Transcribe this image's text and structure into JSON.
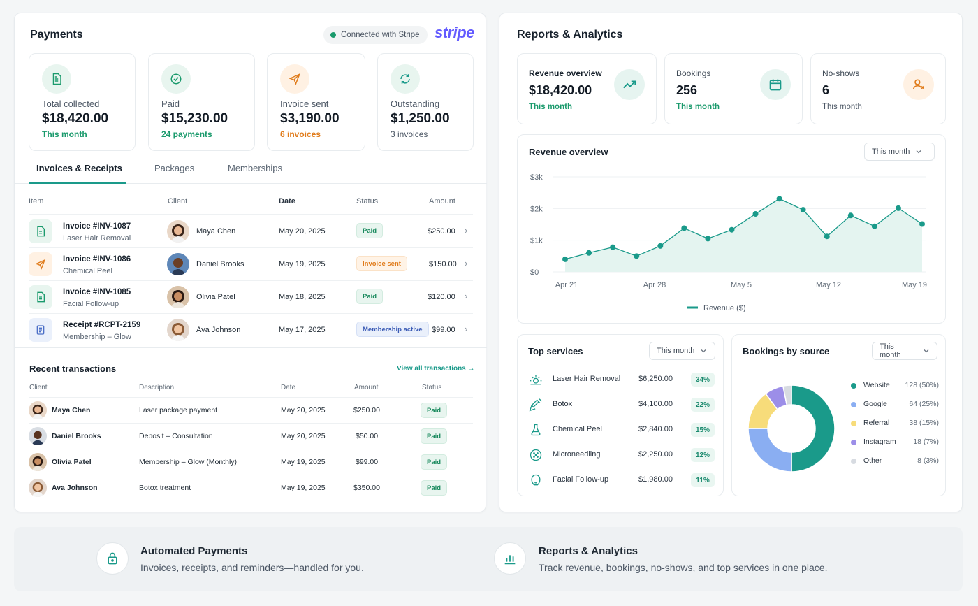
{
  "payments": {
    "title": "Payments",
    "stripe_status": "Connected with Stripe",
    "stripe_logo": "stripe",
    "stats": [
      {
        "icon": "receipt-icon",
        "label": "Total collected",
        "value": "$18,420.00",
        "sub": "This month",
        "sub_color": "#1a9a6c"
      },
      {
        "icon": "check-circle-icon",
        "label": "Paid",
        "value": "$15,230.00",
        "sub": "24 payments",
        "sub_color": "#1a9a6c"
      },
      {
        "icon": "send-icon",
        "label": "Invoice sent",
        "value": "$3,190.00",
        "sub": "6 invoices",
        "sub_color": "#e07b1a"
      },
      {
        "icon": "refresh-icon",
        "label": "Outstanding",
        "value": "$1,250.00",
        "sub": "3 invoices",
        "sub_color": "#4a5563"
      }
    ],
    "tabs": [
      "Invoices & Receipts",
      "Packages",
      "Memberships"
    ],
    "table_headers": [
      "Item",
      "Client",
      "Date",
      "Status",
      "Amount"
    ],
    "invoices": [
      {
        "title": "Invoice #INV-1087",
        "sub": "Laser Hair Removal",
        "client": "Maya Chen",
        "date": "May 20, 2025",
        "status": "Paid",
        "amount": "$250.00"
      },
      {
        "title": "Invoice #INV-1086",
        "sub": "Chemical Peel",
        "client": "Daniel Brooks",
        "date": "May 19, 2025",
        "status": "Invoice sent",
        "amount": "$150.00"
      },
      {
        "title": "Invoice #INV-1085",
        "sub": "Facial Follow-up",
        "client": "Olivia Patel",
        "date": "May 18, 2025",
        "status": "Paid",
        "amount": "$120.00"
      },
      {
        "title": "Receipt #RCPT-2159",
        "sub": "Membership – Glow",
        "client": "Ava Johnson",
        "date": "May 17, 2025",
        "status": "Membership active",
        "amount": "$99.00"
      }
    ],
    "recent": {
      "title": "Recent transactions",
      "link": "View all transactions →",
      "headers": [
        "Client",
        "Description",
        "Date",
        "Amount",
        "Status"
      ],
      "rows": [
        {
          "client": "Maya Chen",
          "desc": "Laser package payment",
          "date": "May 20, 2025",
          "amount": "$250.00",
          "status": "Paid"
        },
        {
          "client": "Daniel Brooks",
          "desc": "Deposit – Consultation",
          "date": "May 20, 2025",
          "amount": "$50.00",
          "status": "Paid"
        },
        {
          "client": "Olivia Patel",
          "desc": "Membership – Glow (Monthly)",
          "date": "May 19, 2025",
          "amount": "$99.00",
          "status": "Paid"
        },
        {
          "client": "Ava Johnson",
          "desc": "Botox treatment",
          "date": "May 19, 2025",
          "amount": "$350.00",
          "status": "Paid"
        }
      ]
    }
  },
  "reports": {
    "title": "Reports & Analytics",
    "stats": [
      {
        "label": "Revenue overview",
        "value": "$18,420.00",
        "sub": "This month",
        "icon": "trend-up-icon"
      },
      {
        "label": "Bookings",
        "value": "256",
        "sub": "This month",
        "icon": "calendar-icon"
      },
      {
        "label": "No-shows",
        "value": "6",
        "sub": "This month",
        "icon": "user-x-icon"
      }
    ],
    "revenue_title": "Revenue overview",
    "period": "This month",
    "top_services": {
      "title": "Top services",
      "period": "This month",
      "items": [
        {
          "name": "Laser Hair Removal",
          "amount": "$6,250.00",
          "pct": "34%",
          "icon": "sun-icon"
        },
        {
          "name": "Botox",
          "amount": "$4,100.00",
          "pct": "22%",
          "icon": "syringe-icon"
        },
        {
          "name": "Chemical Peel",
          "amount": "$2,840.00",
          "pct": "15%",
          "icon": "flask-icon"
        },
        {
          "name": "Microneedling",
          "amount": "$2,250.00",
          "pct": "12%",
          "icon": "microneedle-icon"
        },
        {
          "name": "Facial Follow-up",
          "amount": "$1,980.00",
          "pct": "11%",
          "icon": "face-icon"
        }
      ]
    },
    "bookings_source": {
      "title": "Bookings by source",
      "period": "This month"
    }
  },
  "footer": {
    "items": [
      {
        "title": "Automated Payments",
        "sub": "Invoices, receipts, and reminders—handled for you.",
        "icon": "lock-icon"
      },
      {
        "title": "Reports & Analytics",
        "sub": "Track revenue, bookings, no-shows, and top services in one place.",
        "icon": "bar-chart-icon"
      }
    ]
  },
  "chart_data": [
    {
      "type": "area",
      "title": "Revenue overview",
      "x": [
        "Apr 21",
        "Apr 23",
        "Apr 25",
        "Apr 27",
        "Apr 29",
        "May 1",
        "May 3",
        "May 5",
        "May 7",
        "May 9",
        "May 11",
        "May 13",
        "May 15",
        "May 17",
        "May 19",
        "May 20"
      ],
      "x_ticks": [
        "Apr 21",
        "Apr 28",
        "May 5",
        "May 12",
        "May 19"
      ],
      "y_ticks": [
        "$0",
        "$1k",
        "$2k",
        "$3k"
      ],
      "ylim": [
        0,
        3000
      ],
      "series": [
        {
          "name": "Revenue ($)",
          "values": [
            400,
            600,
            780,
            500,
            820,
            1380,
            1050,
            1330,
            1830,
            2310,
            1960,
            1120,
            1780,
            1440,
            2010,
            1510
          ]
        }
      ],
      "color": "#1a9a8a",
      "grid": true,
      "legend": "bottom"
    },
    {
      "type": "pie",
      "title": "Bookings by source",
      "categories": [
        "Website",
        "Google",
        "Referral",
        "Instagram",
        "Other"
      ],
      "values": [
        128,
        64,
        38,
        18,
        8
      ],
      "labels": [
        "128 (50%)",
        "64 (25%)",
        "38 (15%)",
        "18 (7%)",
        "8 (3%)"
      ],
      "colors": [
        "#1a9a8a",
        "#8aaef2",
        "#f7dc7a",
        "#9c8ee8",
        "#d7dbe1"
      ],
      "legend": "right"
    }
  ]
}
